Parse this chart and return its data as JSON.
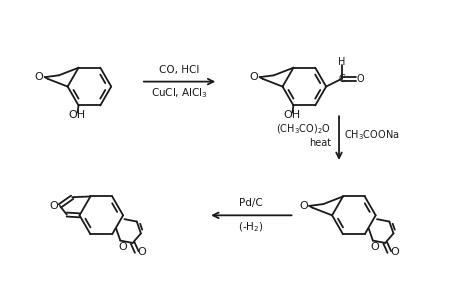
{
  "bg_color": "#ffffff",
  "line_color": "#1a1a1a",
  "text_color": "#1a1a1a",
  "arrow_color": "#1a1a1a",
  "fig_width": 4.74,
  "fig_height": 2.91,
  "dpi": 100,
  "arrow1_label_top": "CO, HCl",
  "arrow1_label_bot": "CuCl, AlCl$_3$",
  "arrow2_label_left": "(CH$_3$CO)$_2$O\nheat",
  "arrow2_label_right": "CH$_3$COONa",
  "arrow3_label_top": "Pd/C",
  "arrow3_label_bot": "(-H$_2$)"
}
